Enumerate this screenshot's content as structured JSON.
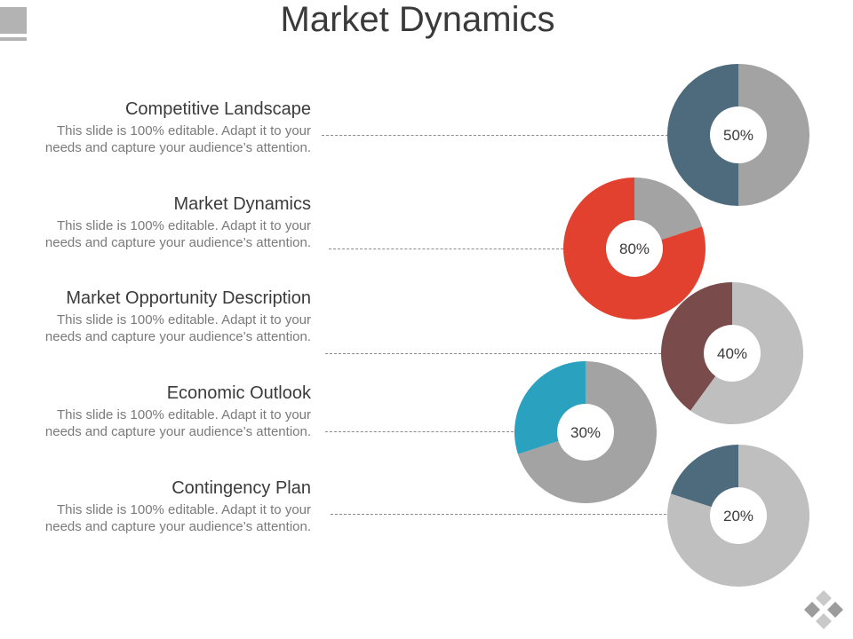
{
  "title": "Market Dynamics",
  "items": [
    {
      "heading": "Competitive Landscape",
      "body": "This slide is 100% editable. Adapt it to your needs and capture your audience’s attention.",
      "percent_label": "50%",
      "percent": 50,
      "color": "#4d6b7c",
      "remainder_color": "#a3a3a3"
    },
    {
      "heading": "Market Dynamics",
      "body": "This slide is 100% editable. Adapt it to your needs and capture your audience’s attention.",
      "percent_label": "80%",
      "percent": 80,
      "color": "#e2412f",
      "remainder_color": "#a3a3a3"
    },
    {
      "heading": "Market Opportunity Description",
      "body": "This slide is 100% editable. Adapt it to your needs and capture your audience’s attention.",
      "percent_label": "40%",
      "percent": 40,
      "color": "#7a4b4b",
      "remainder_color": "#bfbfbf"
    },
    {
      "heading": "Economic Outlook",
      "body": "This slide is 100% editable. Adapt it to your needs and capture your audience’s attention.",
      "percent_label": "30%",
      "percent": 30,
      "color": "#2aa1bf",
      "remainder_color": "#a3a3a3"
    },
    {
      "heading": "Contingency Plan",
      "body": "This slide is 100% editable. Adapt it to your needs and capture your audience’s attention.",
      "percent_label": "20%",
      "percent": 20,
      "color": "#4d6b7c",
      "remainder_color": "#bfbfbf"
    }
  ],
  "icons": {
    "corner": "gray-square-icon",
    "logo": "diamond-logo-icon"
  }
}
